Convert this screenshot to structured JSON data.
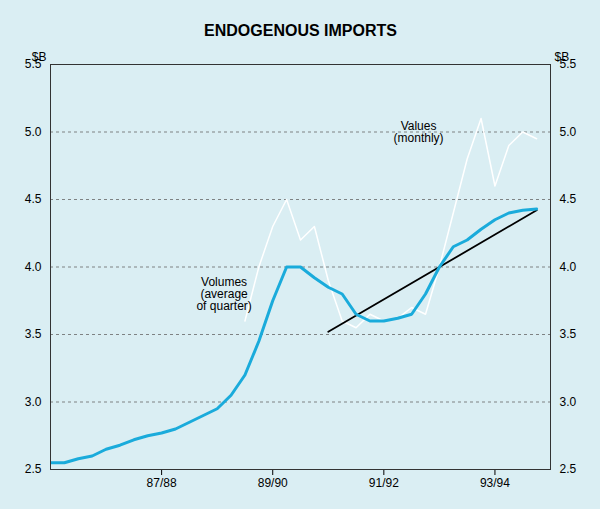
{
  "chart_data": {
    "type": "line",
    "title": "ENDOGENOUS IMPORTS",
    "xlim": [
      0,
      36
    ],
    "xticks": [
      {
        "value": 8,
        "label": "87/88"
      },
      {
        "value": 16,
        "label": "89/90"
      },
      {
        "value": 24,
        "label": "91/92"
      },
      {
        "value": 32,
        "label": "93/94"
      }
    ],
    "ylim": [
      2.5,
      5.5
    ],
    "yticks": [
      2.5,
      {
        "value": 3,
        "label": "3.0"
      },
      3.5,
      {
        "value": 4,
        "label": "4.0"
      },
      4.5,
      {
        "value": 5,
        "label": "5.0"
      },
      5.5
    ],
    "y2lim": [
      2.5,
      5.5
    ],
    "y2ticks": [
      2.5,
      {
        "value": 3,
        "label": "3.0"
      },
      3.5,
      {
        "value": 4,
        "label": "4.0"
      },
      4.5,
      {
        "value": 5,
        "label": "5.0"
      },
      5.5
    ],
    "ylabel": "$B",
    "y2label": "$B",
    "grid": true,
    "series": [
      {
        "color": "#ffffff",
        "x": [
          14,
          15,
          16,
          17,
          18,
          19,
          20,
          21,
          22,
          23,
          24,
          25,
          26,
          27,
          28,
          29,
          30,
          31,
          32,
          33,
          34,
          35
        ],
        "values": [
          3.6,
          4.0,
          4.3,
          4.5,
          4.2,
          4.3,
          3.9,
          3.6,
          3.55,
          3.65,
          3.6,
          3.62,
          3.7,
          3.65,
          4.0,
          4.4,
          4.8,
          5.1,
          4.6,
          4.9,
          5.0,
          4.95
        ]
      },
      {
        "color": "#000000",
        "x": [
          20,
          35
        ],
        "values": [
          3.52,
          4.42
        ]
      },
      {
        "color": "#1aabdb",
        "x": [
          0,
          1,
          2,
          3,
          4,
          5,
          6,
          7,
          8,
          9,
          10,
          11,
          12,
          13,
          14,
          15,
          16,
          17,
          18,
          19,
          20,
          21,
          22,
          23,
          24,
          25,
          26,
          27,
          28,
          29,
          30,
          31,
          32,
          33,
          34,
          35
        ],
        "values": [
          2.55,
          2.55,
          2.58,
          2.6,
          2.65,
          2.68,
          2.72,
          2.75,
          2.77,
          2.8,
          2.85,
          2.9,
          2.95,
          3.05,
          3.2,
          3.45,
          3.75,
          4.0,
          4.0,
          3.92,
          3.85,
          3.8,
          3.65,
          3.6,
          3.6,
          3.62,
          3.65,
          3.8,
          4.0,
          4.15,
          4.2,
          4.28,
          4.35,
          4.4,
          4.42,
          4.43
        ]
      }
    ],
    "annotations": [
      {
        "text": "Volumes\n(average\nof quarter)",
        "x": 12.5,
        "y": 3.92
      },
      {
        "text": "Values\n(monthly)",
        "x": 26.5,
        "y": 5.08
      }
    ]
  }
}
